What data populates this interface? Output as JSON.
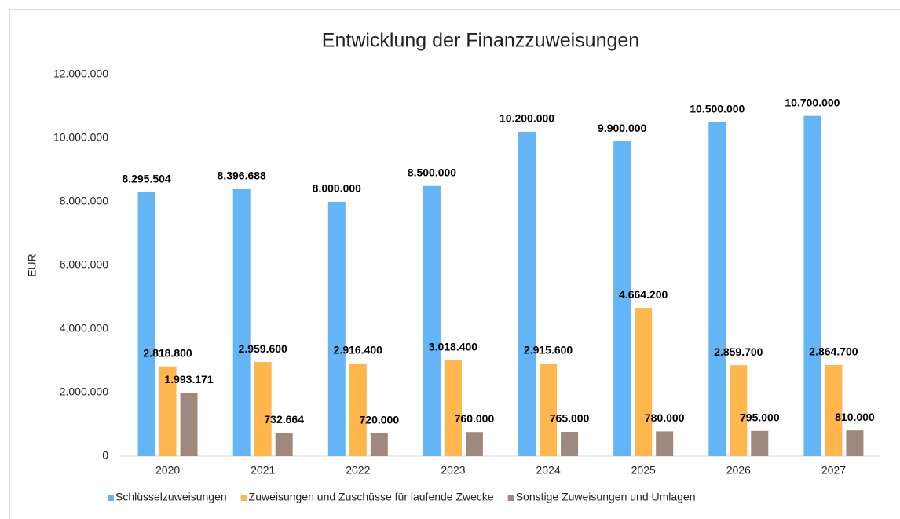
{
  "chart_data": {
    "type": "bar",
    "title": "Entwicklung der Finanzzuweisungen",
    "y_label": "EUR",
    "categories": [
      "2020",
      "2021",
      "2022",
      "2023",
      "2024",
      "2025",
      "2026",
      "2027"
    ],
    "series": [
      {
        "name": "Schlüsselzuweisungen",
        "color": "#64b5f6",
        "values": [
          8295504,
          8396688,
          8000000,
          8500000,
          10200000,
          9900000,
          10500000,
          10700000
        ],
        "value_labels": [
          "8.295.504",
          "8.396.688",
          "8.000.000",
          "8.500.000",
          "10.200.000",
          "9.900.000",
          "10.500.000",
          "10.700.000"
        ]
      },
      {
        "name": "Zuweisungen und Zuschüsse für laufende Zwecke",
        "color": "#ffb74d",
        "values": [
          2818800,
          2959600,
          2916400,
          3018400,
          2915600,
          4664200,
          2859700,
          2864700
        ],
        "value_labels": [
          "2.818.800",
          "2.959.600",
          "2.916.400",
          "3.018.400",
          "2.915.600",
          "4.664.200",
          "2.859.700",
          "2.864.700"
        ]
      },
      {
        "name": "Sonstige Zuweisungen und Umlagen",
        "color": "#a1887f",
        "values": [
          1993171,
          732664,
          720000,
          760000,
          765000,
          780000,
          795000,
          810000
        ],
        "value_labels": [
          "1.993.171",
          "732.664",
          "720.000",
          "760.000",
          "765.000",
          "780.000",
          "795.000",
          "810.000"
        ]
      }
    ],
    "ylim": [
      0,
      12000000
    ],
    "yticks": [
      0,
      {
        "value": 2000000,
        "label": "2.000.000"
      },
      {
        "value": 4000000,
        "label": "4.000.000"
      },
      {
        "value": 6000000,
        "label": "6.000.000"
      },
      {
        "value": 8000000,
        "label": "8.000.000"
      },
      {
        "value": 10000000,
        "label": "10.000.000"
      },
      {
        "value": 12000000,
        "label": "12.000.000"
      }
    ],
    "grid": false,
    "legend": "bottom"
  }
}
